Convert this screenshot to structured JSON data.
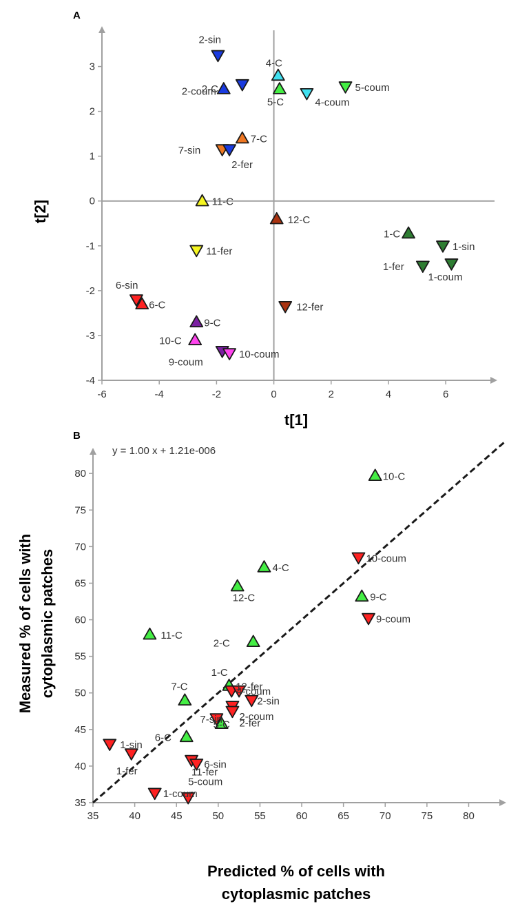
{
  "colors": {
    "axis": "#a0a0a0",
    "light_green": "#44ee44",
    "red": "#ff2222",
    "dark_green": "#2e7d32",
    "blue": "#1a3be0",
    "cyan": "#40e0f0",
    "orange": "#ee7722",
    "yellow": "#f5f520",
    "dark_red": "#aa3311",
    "purple": "#7b1fa2",
    "magenta": "#ff44ee",
    "fit_line": "#1a1a1a"
  },
  "chart_data": [
    {
      "panel": "A",
      "type": "scatter",
      "xlabel": "t[1]",
      "ylabel": "t[2]",
      "xlim": [
        -6,
        7.8
      ],
      "ylim": [
        -4,
        3.9
      ],
      "xticks": [
        -6,
        -4,
        -2,
        0,
        2,
        4,
        6
      ],
      "yticks": [
        -4,
        -3,
        -2,
        -1,
        0,
        1,
        2,
        3
      ],
      "grid": false,
      "points": [
        {
          "label": "2-sin",
          "x": -1.95,
          "y": 3.25,
          "marker": "down",
          "color": "blue"
        },
        {
          "label": "2-coum",
          "x": -1.1,
          "y": 2.6,
          "marker": "down",
          "color": "blue"
        },
        {
          "label": "2-C",
          "x": -1.75,
          "y": 2.5,
          "marker": "up",
          "color": "blue"
        },
        {
          "label": "4-C",
          "x": 0.15,
          "y": 2.8,
          "marker": "up",
          "color": "cyan"
        },
        {
          "label": "5-C",
          "x": 0.2,
          "y": 2.5,
          "marker": "up",
          "color": "light_green"
        },
        {
          "label": "4-coum",
          "x": 1.15,
          "y": 2.4,
          "marker": "down",
          "color": "cyan"
        },
        {
          "label": "5-coum",
          "x": 2.5,
          "y": 2.55,
          "marker": "down",
          "color": "light_green"
        },
        {
          "label": "7-C",
          "x": -1.1,
          "y": 1.4,
          "marker": "up",
          "color": "orange"
        },
        {
          "label": "7-sin",
          "x": -1.8,
          "y": 1.15,
          "marker": "down",
          "color": "orange"
        },
        {
          "label": "2-fer",
          "x": -1.55,
          "y": 1.15,
          "marker": "down",
          "color": "blue"
        },
        {
          "label": "11-C",
          "x": -2.5,
          "y": 0.0,
          "marker": "up",
          "color": "yellow"
        },
        {
          "label": "12-C",
          "x": 0.1,
          "y": -0.4,
          "marker": "up",
          "color": "dark_red"
        },
        {
          "label": "11-fer",
          "x": -2.7,
          "y": -1.1,
          "marker": "down",
          "color": "yellow"
        },
        {
          "label": "1-C",
          "x": 4.7,
          "y": -0.72,
          "marker": "up",
          "color": "dark_green"
        },
        {
          "label": "1-sin",
          "x": 5.9,
          "y": -1.0,
          "marker": "down",
          "color": "dark_green"
        },
        {
          "label": "1-fer",
          "x": 5.2,
          "y": -1.45,
          "marker": "down",
          "color": "dark_green"
        },
        {
          "label": "1-coum",
          "x": 6.2,
          "y": -1.4,
          "marker": "down",
          "color": "dark_green"
        },
        {
          "label": "6-sin",
          "x": -4.8,
          "y": -2.2,
          "marker": "down",
          "color": "red"
        },
        {
          "label": "6-C",
          "x": -4.6,
          "y": -2.3,
          "marker": "up",
          "color": "red"
        },
        {
          "label": "12-fer",
          "x": 0.4,
          "y": -2.35,
          "marker": "down",
          "color": "dark_red"
        },
        {
          "label": "9-C",
          "x": -2.7,
          "y": -2.7,
          "marker": "up",
          "color": "purple"
        },
        {
          "label": "10-C",
          "x": -2.75,
          "y": -3.1,
          "marker": "up",
          "color": "magenta"
        },
        {
          "label": "9-coum",
          "x": -1.8,
          "y": -3.35,
          "marker": "down",
          "color": "purple"
        },
        {
          "label": "10-coum",
          "x": -1.55,
          "y": -3.4,
          "marker": "down",
          "color": "magenta"
        }
      ]
    },
    {
      "panel": "B",
      "type": "scatter",
      "xlabel": "Predicted % of cells with cytoplasmic patches",
      "ylabel": "Measured % of cells with cytoplasmic patches",
      "annotation": "y = 1.00 x + 1.21e-006",
      "xlim": [
        35,
        84.5
      ],
      "ylim": [
        35,
        83.5
      ],
      "xticks": [
        35,
        40,
        45,
        50,
        55,
        60,
        65,
        70,
        75,
        80
      ],
      "yticks": [
        35,
        40,
        45,
        50,
        55,
        60,
        65,
        70,
        75,
        80
      ],
      "fit_line": {
        "slope": 1.0,
        "intercept": 1.21e-06
      },
      "grid": false,
      "points": [
        {
          "label": "10-C",
          "x": 68.8,
          "y": 79.7,
          "marker": "up",
          "color": "light_green"
        },
        {
          "label": "10-coum",
          "x": 66.8,
          "y": 68.5,
          "marker": "down",
          "color": "red"
        },
        {
          "label": "4-C",
          "x": 55.5,
          "y": 67.2,
          "marker": "up",
          "color": "light_green"
        },
        {
          "label": "12-C",
          "x": 52.3,
          "y": 64.6,
          "marker": "up",
          "color": "light_green"
        },
        {
          "label": "9-C",
          "x": 67.2,
          "y": 63.2,
          "marker": "up",
          "color": "light_green"
        },
        {
          "label": "9-coum",
          "x": 68.0,
          "y": 60.2,
          "marker": "down",
          "color": "red"
        },
        {
          "label": "11-C",
          "x": 41.8,
          "y": 58.0,
          "marker": "up",
          "color": "light_green"
        },
        {
          "label": "2-C",
          "x": 54.2,
          "y": 57.0,
          "marker": "up",
          "color": "light_green"
        },
        {
          "label": "1-C",
          "x": 51.3,
          "y": 51.0,
          "marker": "up",
          "color": "light_green"
        },
        {
          "label": "12-fer",
          "x": 51.6,
          "y": 50.3,
          "marker": "down",
          "color": "red"
        },
        {
          "label": "4-coum",
          "x": 52.5,
          "y": 50.3,
          "marker": "down",
          "color": "red"
        },
        {
          "label": "7-C",
          "x": 46.0,
          "y": 49.0,
          "marker": "up",
          "color": "light_green"
        },
        {
          "label": "2-sin",
          "x": 54.0,
          "y": 49.0,
          "marker": "down",
          "color": "red"
        },
        {
          "label": "2-coum",
          "x": 51.7,
          "y": 48.2,
          "marker": "down",
          "color": "red"
        },
        {
          "label": "2-fer",
          "x": 51.7,
          "y": 47.5,
          "marker": "down",
          "color": "red"
        },
        {
          "label": "7-sin",
          "x": 49.8,
          "y": 46.5,
          "marker": "down",
          "color": "red"
        },
        {
          "label": "5-C",
          "x": 50.4,
          "y": 45.8,
          "marker": "up",
          "color": "light_green"
        },
        {
          "label": "6-C",
          "x": 46.2,
          "y": 44.0,
          "marker": "up",
          "color": "light_green"
        },
        {
          "label": "1-sin",
          "x": 37.0,
          "y": 43.0,
          "marker": "down",
          "color": "red"
        },
        {
          "label": "1-fer",
          "x": 39.6,
          "y": 41.7,
          "marker": "down",
          "color": "red"
        },
        {
          "label": "11-fer",
          "x": 46.8,
          "y": 40.8,
          "marker": "down",
          "color": "red"
        },
        {
          "label": "6-sin",
          "x": 47.4,
          "y": 40.3,
          "marker": "down",
          "color": "red"
        },
        {
          "label": "1-coum",
          "x": 42.4,
          "y": 36.3,
          "marker": "down",
          "color": "red"
        },
        {
          "label": "5-coum",
          "x": 46.4,
          "y": 35.7,
          "marker": "down",
          "color": "red"
        }
      ]
    }
  ]
}
